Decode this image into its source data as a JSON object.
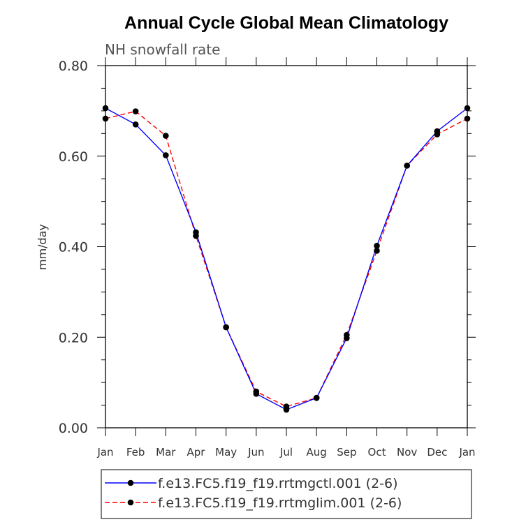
{
  "chart_data": {
    "type": "line",
    "title": "Annual Cycle Global Mean Climatology",
    "subtitle": "NH snowfall rate",
    "ylabel": "mm/day",
    "xlabel": "",
    "ylim": [
      0.0,
      0.8
    ],
    "yticks": [
      "0.00",
      "0.20",
      "0.40",
      "0.60",
      "0.80"
    ],
    "ytick_values": [
      0.0,
      0.2,
      0.4,
      0.6,
      0.8
    ],
    "categories": [
      "Jan",
      "Feb",
      "Mar",
      "Apr",
      "May",
      "Jun",
      "Jul",
      "Aug",
      "Sep",
      "Oct",
      "Nov",
      "Dec",
      "Jan"
    ],
    "series": [
      {
        "name": "f.e13.FC5.f19_f19.rrtmgctl.001 (2-6)",
        "color": "#0000ff",
        "dash": "solid",
        "values": [
          0.706,
          0.67,
          0.602,
          0.432,
          0.222,
          0.075,
          0.04,
          0.066,
          0.198,
          0.402,
          0.579,
          0.655,
          0.706
        ]
      },
      {
        "name": "f.e13.FC5.f19_f19.rrtmglim.001 (2-6)",
        "color": "#ff0000",
        "dash": "dashed",
        "values": [
          0.683,
          0.699,
          0.645,
          0.424,
          0.222,
          0.08,
          0.047,
          0.066,
          0.205,
          0.391,
          0.579,
          0.648,
          0.683
        ]
      }
    ],
    "legend": "bottom"
  }
}
